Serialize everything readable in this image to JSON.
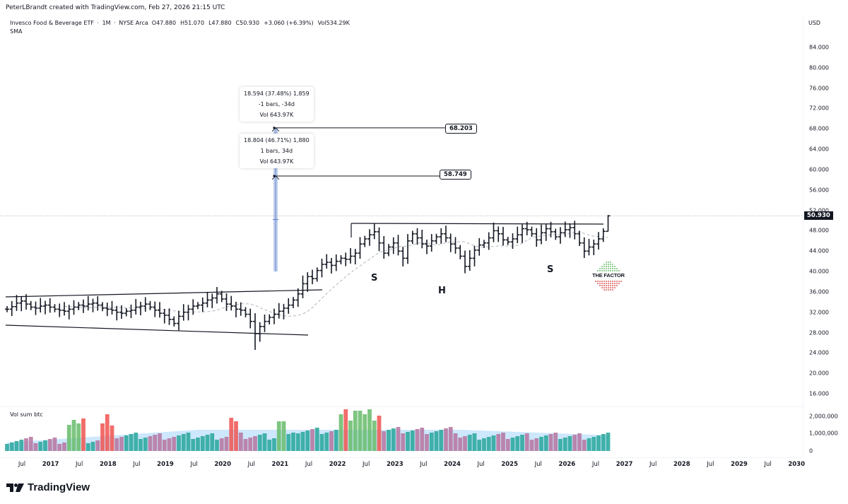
{
  "header": {
    "credit": "PeterLBrandt created with TradingView.com, Feb 27, 2026 21:15 UTC"
  },
  "legend": {
    "symbol_name": "Invesco Food & Beverage ETF",
    "interval": "1M",
    "exchange": "NYSE Arca",
    "open": "O47.880",
    "high": "H51.070",
    "low": "L47.880",
    "close": "C50.930",
    "change": "+3.060 (+6.39%)",
    "volume": "Vol534.29K",
    "indicator": "SMA"
  },
  "price_axis": {
    "currency": "USD",
    "ticks": [
      "84.000",
      "80.000",
      "76.000",
      "72.000",
      "68.000",
      "64.000",
      "60.000",
      "56.000",
      "52.000",
      "48.000",
      "44.000",
      "40.000",
      "36.000",
      "32.000",
      "28.000",
      "24.000",
      "20.000",
      "16.000"
    ],
    "last_price": "50.930"
  },
  "volume_pane": {
    "label": "Vol sum btc",
    "ticks": [
      "2,000,000",
      "1,000,000",
      "0"
    ]
  },
  "time_axis": {
    "ticks": [
      "Jul",
      "2017",
      "Jul",
      "2018",
      "Jul",
      "2019",
      "Jul",
      "2020",
      "Jul",
      "2021",
      "Jul",
      "2022",
      "Jul",
      "2023",
      "Jul",
      "2024",
      "Jul",
      "2025",
      "Jul",
      "2026",
      "Jul",
      "2027",
      "Jul",
      "2028",
      "Jul",
      "2029",
      "Jul",
      "2030"
    ]
  },
  "annotations": {
    "measure_upper": {
      "line1": "18.594 (37.48%) 1,859",
      "line2": "-1 bars, -34d",
      "line3": "Vol 643.97K"
    },
    "measure_lower": {
      "line1": "18.804 (46.71%) 1,880",
      "line2": "1 bars, 34d",
      "line3": "Vol 643.97K"
    },
    "target_1": "68.203",
    "target_2": "58.749",
    "pattern_labels": [
      "S",
      "H",
      "S"
    ],
    "watermark": "THE FACTOR"
  },
  "branding": {
    "logo_text": "TradingView"
  },
  "colors": {
    "bars": "#131722",
    "vol_up": "#26a69a",
    "vol_down": "#ef5350",
    "vol_up_strong": "#66bb6a",
    "vol_down_mauve": "#b5739d",
    "vol_ma_fill": "#90caf9",
    "measure_fill": "#a9bde6",
    "grid_dotted": "#b2b5be",
    "factor_green": "#4caf50",
    "factor_red": "#d32f2f"
  },
  "chart_data": {
    "type": "ohlc-bar",
    "title": "Invesco Food & Beverage ETF · 1M · NYSE Arca",
    "xlabel": "",
    "ylabel": "USD",
    "ylim": [
      16,
      84
    ],
    "x_range": [
      "2016-06",
      "2030-03"
    ],
    "last": {
      "open": 47.88,
      "high": 51.07,
      "low": 47.88,
      "close": 50.93,
      "change": 3.06,
      "change_pct": 6.39,
      "volume": "534.29K"
    },
    "monthly_closes_approx": {
      "start": "2016-06",
      "values": [
        32.6,
        33.1,
        33.8,
        34.2,
        33.6,
        33.0,
        32.8,
        33.2,
        33.4,
        33.0,
        32.6,
        32.4,
        32.2,
        32.6,
        33.0,
        33.4,
        33.2,
        33.6,
        33.8,
        33.4,
        32.8,
        32.6,
        32.4,
        32.0,
        31.8,
        32.2,
        32.4,
        33.0,
        33.2,
        33.6,
        33.0,
        32.4,
        31.8,
        31.4,
        30.6,
        29.8,
        31.2,
        32.0,
        32.6,
        33.2,
        33.4,
        33.8,
        34.4,
        34.8,
        35.6,
        34.6,
        33.6,
        33.2,
        32.6,
        32.4,
        31.6,
        30.2,
        27.8,
        29.2,
        30.2,
        31.0,
        31.6,
        32.2,
        32.8,
        33.4,
        34.4,
        35.6,
        37.6,
        39.0,
        38.6,
        40.2,
        41.4,
        41.8,
        41.2,
        42.0,
        42.6,
        42.4,
        43.0,
        43.6,
        45.4,
        46.4,
        47.2,
        47.8,
        45.6,
        43.6,
        44.8,
        45.6,
        44.0,
        42.6,
        46.0,
        47.4,
        46.6,
        45.4,
        45.0,
        46.0,
        46.8,
        47.4,
        46.6,
        45.4,
        44.6,
        43.0,
        41.0,
        42.6,
        44.2,
        45.2,
        45.6,
        46.6,
        48.0,
        47.4,
        46.2,
        45.8,
        46.4,
        47.2,
        48.4,
        48.2,
        47.4,
        46.2,
        47.6,
        48.4,
        47.8,
        46.8,
        47.6,
        48.2,
        48.6,
        47.4,
        45.6,
        44.0,
        44.8,
        45.4,
        46.4,
        47.88,
        50.93
      ]
    },
    "trendlines": [
      {
        "name": "upper channel",
        "from": [
          "2016-06",
          34.6
        ],
        "to": [
          "2021-11",
          36.2
        ]
      },
      {
        "name": "lower channel",
        "from": [
          "2016-06",
          29.8
        ],
        "to": [
          "2021-10",
          27.6
        ]
      },
      {
        "name": "neckline",
        "from": [
          "2022-04",
          49.8
        ],
        "to": [
          "2026-07",
          49.6
        ]
      }
    ],
    "horizontal_targets": [
      68.203,
      58.749
    ],
    "measure": {
      "from": 40.0,
      "to_1": 58.749,
      "to_2": 68.203,
      "delta_1": 18.804,
      "pct_1": 46.71,
      "delta_2": 18.594,
      "pct_2": 37.48
    },
    "pattern": "Inverse? No — Head & Shoulders base labeled S-H-S below neckline (~49.7), breakout Feb 2026",
    "volume": {
      "label": "Vol sum btc",
      "ylim": [
        0,
        2500000
      ],
      "ticks": [
        0,
        1000000,
        2000000
      ],
      "peak_approx": 2300000,
      "ma_approx": 900000
    }
  }
}
